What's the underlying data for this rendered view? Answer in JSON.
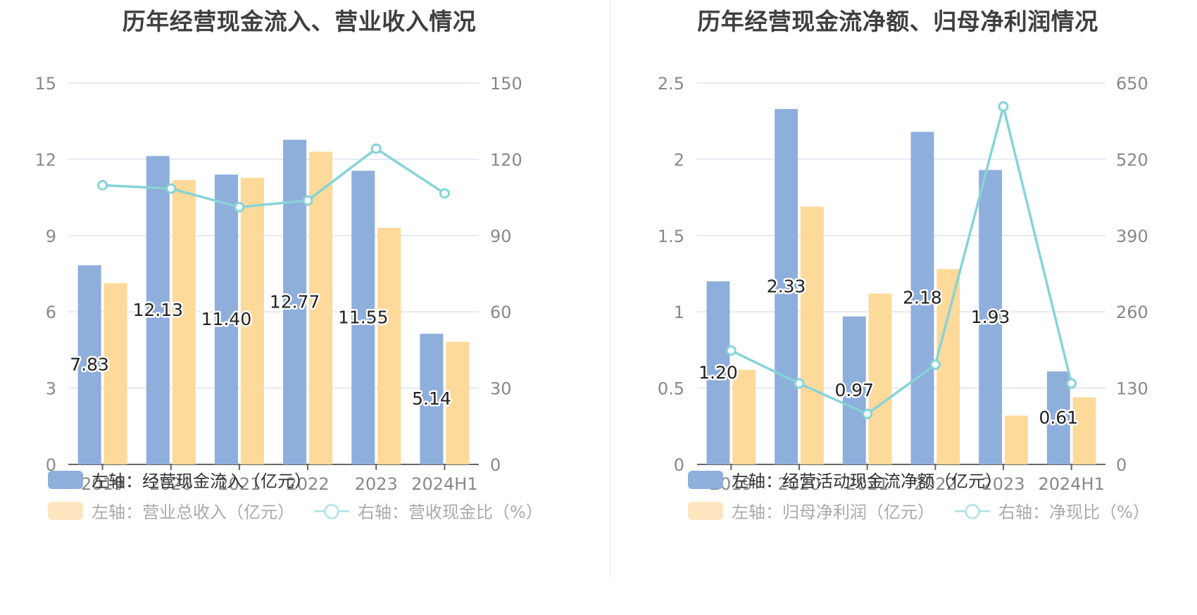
{
  "charts": [
    {
      "title": "历年经营现金流入、营业收入情况",
      "chart_data": {
        "type": "bar",
        "categories": [
          "2019",
          "2020",
          "2021",
          "2022",
          "2023",
          "2024H1"
        ],
        "left_axis": {
          "min": 0,
          "max": 15,
          "ticks": [
            "0",
            "3",
            "6",
            "9",
            "12",
            "15"
          ]
        },
        "right_axis": {
          "min": 0,
          "max": 150,
          "ticks": [
            "0",
            "30",
            "60",
            "90",
            "120",
            "150"
          ]
        },
        "series": [
          {
            "name": "左轴：经营现金流入（亿元）",
            "type": "bar",
            "axis": "left",
            "color": "#8eaedc",
            "values": [
              7.83,
              12.13,
              11.4,
              12.77,
              11.55,
              5.14
            ],
            "labels": [
              "7.83",
              "12.13",
              "11.40",
              "12.77",
              "11.55",
              "5.14"
            ]
          },
          {
            "name": "左轴：营业总收入（亿元）",
            "type": "bar",
            "axis": "left",
            "color": "#fdd99a",
            "values": [
              7.13,
              11.18,
              11.27,
              12.3,
              9.3,
              4.82
            ]
          },
          {
            "name": "右轴：营收现金比（%）",
            "type": "line",
            "axis": "right",
            "color": "#86d3d8",
            "values": [
              109.8,
              108.5,
              101.2,
              103.8,
              124.2,
              106.6
            ]
          }
        ],
        "grid": true,
        "legend_position": "bottom-left"
      }
    },
    {
      "title": "历年经营现金流净额、归母净利润情况",
      "chart_data": {
        "type": "bar",
        "categories": [
          "2019",
          "2020",
          "2021",
          "2022",
          "2023",
          "2024H1"
        ],
        "left_axis": {
          "min": 0,
          "max": 2.5,
          "ticks": [
            "0",
            "0.5",
            "1",
            "1.5",
            "2",
            "2.5"
          ]
        },
        "right_axis": {
          "min": 0,
          "max": 650,
          "ticks": [
            "0",
            "130",
            "260",
            "390",
            "520",
            "650"
          ]
        },
        "series": [
          {
            "name": "左轴：经营活动现金流净额（亿元）",
            "type": "bar",
            "axis": "left",
            "color": "#8eaedc",
            "values": [
              1.2,
              2.33,
              0.97,
              2.18,
              1.93,
              0.61
            ],
            "labels": [
              "1.20",
              "2.33",
              "0.97",
              "2.18",
              "1.93",
              "0.61"
            ]
          },
          {
            "name": "左轴：归母净利润（亿元）",
            "type": "bar",
            "axis": "left",
            "color": "#fdd99a",
            "values": [
              0.62,
              1.69,
              1.12,
              1.28,
              0.32,
              0.44
            ]
          },
          {
            "name": "右轴：净现比（%）",
            "type": "line",
            "axis": "right",
            "color": "#86d3d8",
            "values": [
              194,
              138,
              86,
              170,
              610,
              138
            ]
          }
        ],
        "grid": true,
        "legend_position": "bottom-left"
      }
    }
  ]
}
